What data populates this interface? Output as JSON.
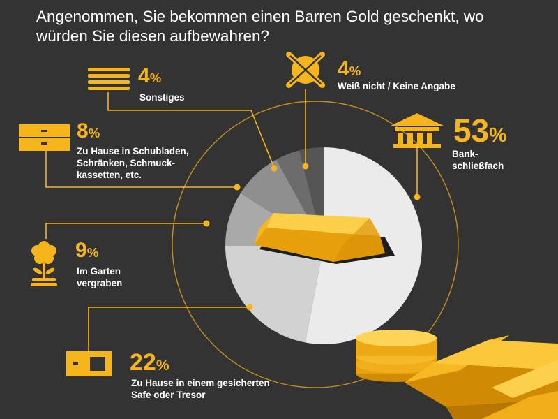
{
  "title": "Angenommen, Sie bekommen einen Barren Gold geschenkt, wo würden Sie diesen aufbewahren?",
  "colors": {
    "background": "#333333",
    "accent": "#f5b51b",
    "text": "#ffffff",
    "slices": [
      "#ebebeb",
      "#d2d2d2",
      "#a9a9a9",
      "#8f8f8f",
      "#6c6c6c",
      "#555555"
    ]
  },
  "chart_data": {
    "type": "pie",
    "title": "Angenommen, Sie bekommen einen Barren Gold geschenkt, wo würden Sie diesen aufbewahren?",
    "unit": "%",
    "slices": [
      {
        "label": "Bank-schließfach",
        "value": 53,
        "icon": "bank-icon"
      },
      {
        "label": "Zu Hause in einem gesicherten Safe oder Tresor",
        "value": 22,
        "icon": "safe-icon"
      },
      {
        "label": "Im Garten vergraben",
        "value": 9,
        "icon": "flower-icon"
      },
      {
        "label": "Zu Hause in Schubladen, Schränken, Schmuck-kassetten, etc.",
        "value": 8,
        "icon": "drawer-icon"
      },
      {
        "label": "Sonstiges",
        "value": 4,
        "icon": "stack-icon"
      },
      {
        "label": "Weiß nicht / Keine Angabe",
        "value": 4,
        "icon": "cross-icon"
      }
    ]
  },
  "labels": {
    "bank": {
      "pct": "53",
      "sign": "%",
      "lines": [
        "Bank-",
        "schließfach"
      ]
    },
    "safe": {
      "pct": "22",
      "sign": "%",
      "lines": [
        "Zu Hause in einem gesicherten",
        "Safe oder Tresor"
      ]
    },
    "garden": {
      "pct": "9",
      "sign": "%",
      "lines": [
        "Im Garten",
        "vergraben"
      ]
    },
    "drawer": {
      "pct": "8",
      "sign": "%",
      "lines": [
        "Zu Hause in Schubladen,",
        "Schränken, Schmuck-",
        "kassetten, etc."
      ]
    },
    "other": {
      "pct": "4",
      "sign": "%",
      "lines": [
        "Sonstiges"
      ]
    },
    "unknown": {
      "pct": "4",
      "sign": "%",
      "lines": [
        "Weiß nicht / Keine Angabe"
      ]
    }
  }
}
